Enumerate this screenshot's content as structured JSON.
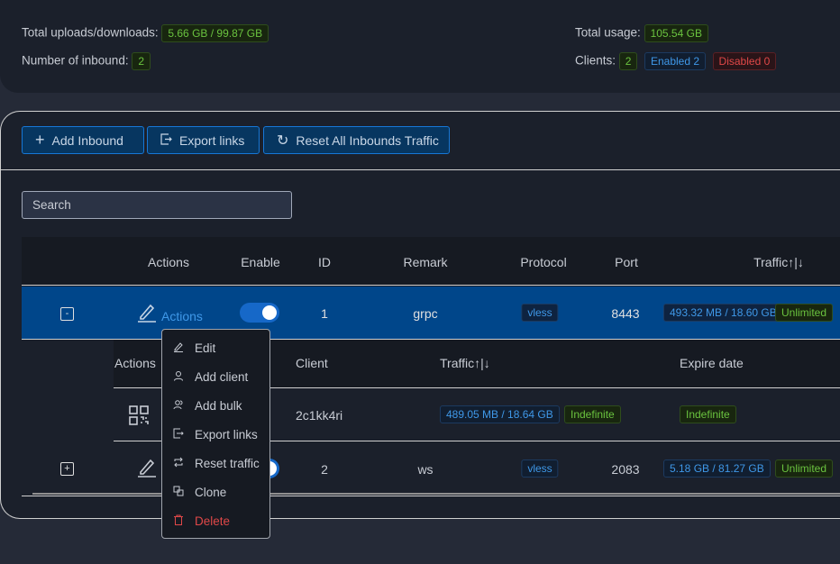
{
  "stats": {
    "total_updown_label": "Total uploads/downloads:",
    "total_updown_value": "5.66 GB / 99.87 GB",
    "inbound_count_label": "Number of inbound:",
    "inbound_count_value": "2",
    "total_usage_label": "Total usage:",
    "total_usage_value": "105.54 GB",
    "clients_label": "Clients:",
    "clients_value": "2",
    "enabled": "Enabled 2",
    "disabled": "Disabled 0"
  },
  "toolbar": {
    "add_inbound": "Add Inbound",
    "export_links": "Export links",
    "reset_all": "Reset All Inbounds Traffic"
  },
  "search": {
    "placeholder": "Search"
  },
  "table": {
    "headers": {
      "actions": "Actions",
      "enable": "Enable",
      "id": "ID",
      "remark": "Remark",
      "protocol": "Protocol",
      "port": "Port",
      "traffic": "Traffic↑|↓"
    },
    "rows": [
      {
        "expander": "-",
        "actions_link": "Actions",
        "enabled": true,
        "id": "1",
        "remark": "grpc",
        "protocol": "vless",
        "port": "8443",
        "traffic": "493.32 MB / 18.60 GB",
        "limit": "Unlimited"
      },
      {
        "expander": "+",
        "enabled": true,
        "id": "2",
        "remark": "ws",
        "protocol": "vless",
        "port": "2083",
        "traffic": "5.18 GB / 81.27 GB",
        "limit": "Unlimited"
      }
    ],
    "client_table": {
      "headers": {
        "actions": "Actions",
        "client": "Client",
        "traffic": "Traffic↑|↓",
        "expire": "Expire date"
      },
      "rows": [
        {
          "client": "2c1kk4ri",
          "traffic": "489.05 MB / 18.64 GB",
          "total": "Indefinite",
          "expire": "Indefinite"
        }
      ]
    }
  },
  "menu": {
    "items": [
      {
        "label": "Edit",
        "icon": "edit-icon"
      },
      {
        "label": "Add client",
        "icon": "user-icon"
      },
      {
        "label": "Add bulk",
        "icon": "users-icon"
      },
      {
        "label": "Export links",
        "icon": "export-icon"
      },
      {
        "label": "Reset traffic",
        "icon": "retweet-icon"
      },
      {
        "label": "Clone",
        "icon": "copy-icon"
      },
      {
        "label": "Delete",
        "icon": "delete-icon",
        "danger": true
      }
    ]
  },
  "colors": {
    "accent": "#1677d6",
    "selected_row": "#00468a",
    "danger": "#e04848",
    "success": "#6ac33f"
  }
}
